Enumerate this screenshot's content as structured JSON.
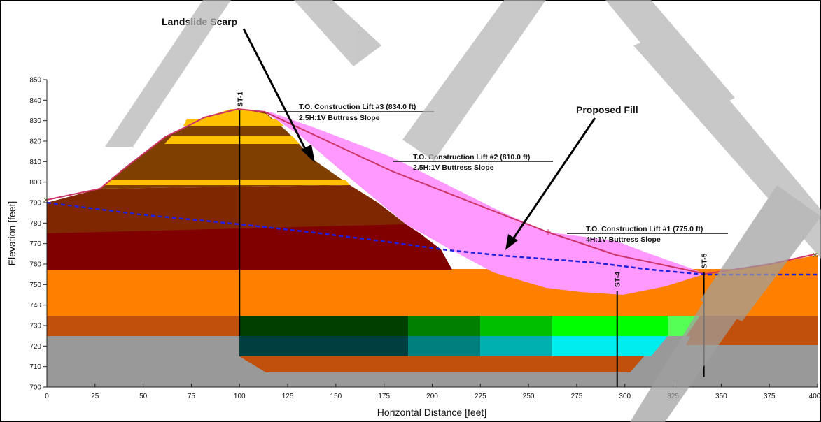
{
  "axes": {
    "xlabel": "Horizontal Distance [feet]",
    "ylabel": "Elevation [feet]",
    "xlim": [
      0,
      400
    ],
    "ylim": [
      700,
      850
    ],
    "xticks": [
      "0",
      "25",
      "50",
      "75",
      "100",
      "125",
      "150",
      "175",
      "200",
      "225",
      "250",
      "275",
      "300",
      "325",
      "350",
      "375",
      "400"
    ],
    "yticks": [
      "700",
      "710",
      "720",
      "730",
      "740",
      "750",
      "760",
      "770",
      "780",
      "790",
      "800",
      "810",
      "820",
      "830",
      "840",
      "850"
    ]
  },
  "callouts": {
    "scarp": "Landslide Scarp",
    "fill": "Proposed Fill"
  },
  "lifts": [
    {
      "title": "T.O. Construction Lift #3 (834.0 ft)",
      "slope": "2.5H:1V Buttress Slope"
    },
    {
      "title": "T.O. Construction Lift #2 (810.0 ft)",
      "slope": "2.5H:1V Buttress Slope"
    },
    {
      "title": "T.O. Construction Lift #1 (775.0 ft)",
      "slope": "4H:1V Buttress Slope"
    }
  ],
  "borings": [
    {
      "label": "ST-1",
      "x": 100,
      "top": 835,
      "bottom": 725
    },
    {
      "label": "ST-4",
      "x": 296,
      "top": 747,
      "bottom": 700
    },
    {
      "label": "ST-5",
      "x": 341,
      "top": 756,
      "bottom": 705
    }
  ],
  "colors": {
    "fill": "#ff99ff",
    "ground_line": "#cc3366",
    "water_table": "#1f1fe0",
    "watermark": "#b4b4b4"
  },
  "watermark": {
    "text": "DRAFT"
  }
}
